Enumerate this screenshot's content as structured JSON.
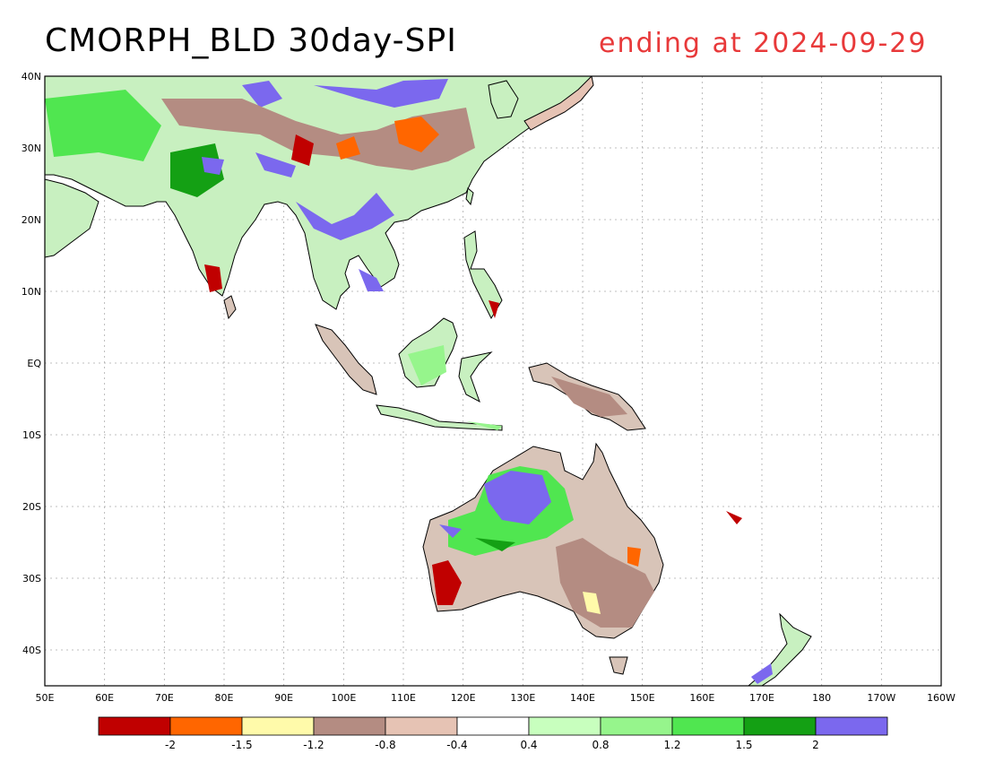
{
  "title": {
    "left": "CMORPH_BLD 30day-SPI",
    "right": "ending at 2024-09-29"
  },
  "map": {
    "lat_ticks": [
      "40N",
      "30N",
      "20N",
      "10N",
      "EQ",
      "10S",
      "20S",
      "30S",
      "40S"
    ],
    "lon_ticks": [
      "50E",
      "60E",
      "70E",
      "80E",
      "90E",
      "100E",
      "110E",
      "120E",
      "130E",
      "140E",
      "150E",
      "160E",
      "170E",
      "180",
      "170W",
      "160W"
    ],
    "coastline_color": "#000000",
    "grid": "dotted"
  },
  "colorbar": {
    "colors": [
      "#c00000",
      "#ff6600",
      "#fffaaa",
      "#b48c82",
      "#e6c3b4",
      "#ffffff",
      "#c8ffbe",
      "#96f58c",
      "#50e650",
      "#14a014",
      "#7b68ee"
    ],
    "labels": [
      "-2",
      "-1.5",
      "-1.2",
      "-0.8",
      "-0.4",
      "0.4",
      "0.8",
      "1.2",
      "1.5",
      "2"
    ]
  }
}
